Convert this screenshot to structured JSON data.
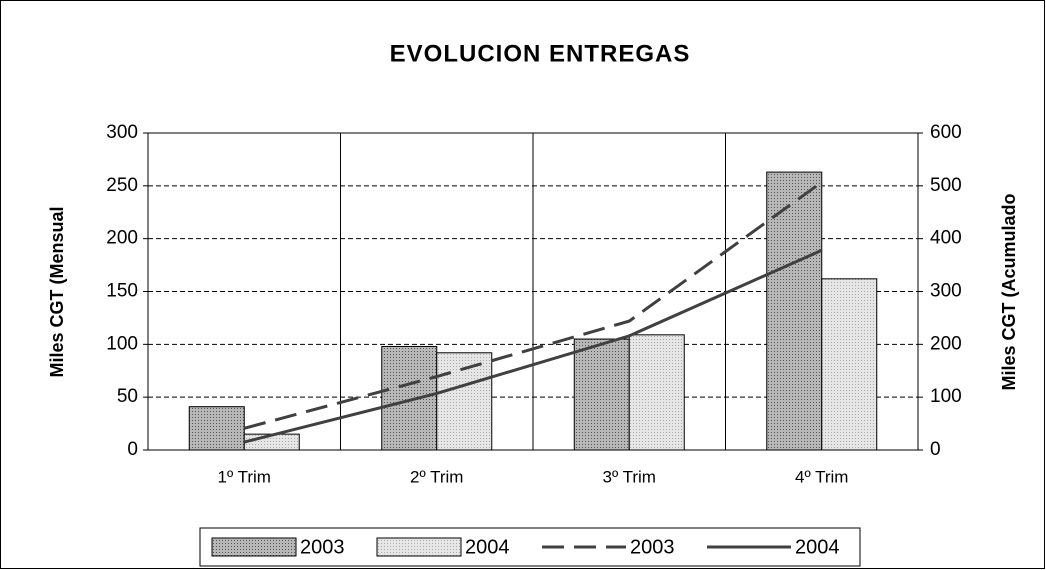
{
  "chart_data": {
    "type": "bar_line",
    "title": "EVOLUCION ENTREGAS",
    "y_label": "Miles CGT (Mensual",
    "y2_label": "Miles CGT (Acumulado",
    "categories": [
      "1º Trim",
      "2º Trim",
      "3º Trim",
      "4º Trim"
    ],
    "series": [
      {
        "name": "2003",
        "type": "bar",
        "color": "#a0a0a0",
        "values": [
          41,
          98,
          105,
          263
        ]
      },
      {
        "name": "2004",
        "type": "bar",
        "color": "#dcdcdc",
        "values": [
          15,
          92,
          109,
          162
        ]
      },
      {
        "name": "2003",
        "type": "line",
        "dashed": true,
        "color": "#404040",
        "axis": "y2",
        "values": [
          41,
          139,
          244,
          507
        ]
      },
      {
        "name": "2004",
        "type": "line",
        "dashed": false,
        "color": "#404040",
        "axis": "y2",
        "values": [
          15,
          107,
          216,
          378
        ]
      }
    ],
    "ylim": [
      0,
      300
    ],
    "yticks": [
      0,
      50,
      100,
      150,
      200,
      250,
      300
    ],
    "y2lim": [
      0,
      600
    ],
    "y2ticks": [
      0,
      100,
      200,
      300,
      400,
      500,
      600
    ],
    "grid": true,
    "legend": "bottom"
  }
}
